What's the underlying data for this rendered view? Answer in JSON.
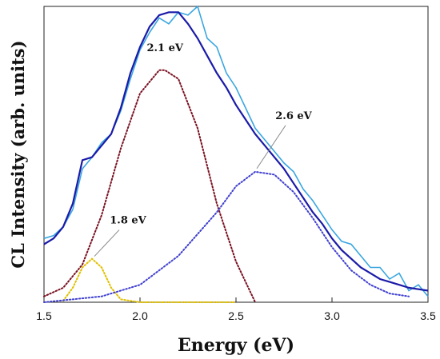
{
  "chart_data": {
    "type": "line",
    "xlabel": "Energy (eV)",
    "ylabel": "CL Intensity (arb. units)",
    "xlim": [
      1.5,
      3.5
    ],
    "ylim": [
      0,
      1.02
    ],
    "x_ticks": [
      "1.5",
      "2.0",
      "2.5",
      "3.0",
      "3.5"
    ],
    "grid": false,
    "y_tick_labels": false,
    "series": [
      {
        "role": "measured",
        "color": "#3aa6e0",
        "style": "solid-noisy",
        "x": [
          1.5,
          1.55,
          1.6,
          1.65,
          1.7,
          1.75,
          1.8,
          1.85,
          1.9,
          1.95,
          2.0,
          2.05,
          2.1,
          2.15,
          2.2,
          2.25,
          2.3,
          2.35,
          2.4,
          2.45,
          2.5,
          2.55,
          2.6,
          2.65,
          2.7,
          2.75,
          2.8,
          2.85,
          2.9,
          2.95,
          3.0,
          3.05,
          3.1,
          3.15,
          3.2,
          3.25,
          3.3,
          3.35,
          3.4,
          3.45,
          3.5
        ],
        "y": [
          0.22,
          0.23,
          0.26,
          0.32,
          0.46,
          0.5,
          0.55,
          0.58,
          0.66,
          0.77,
          0.87,
          0.93,
          0.98,
          0.96,
          1.0,
          0.99,
          1.02,
          0.91,
          0.88,
          0.79,
          0.74,
          0.67,
          0.6,
          0.56,
          0.52,
          0.48,
          0.45,
          0.39,
          0.35,
          0.3,
          0.25,
          0.21,
          0.2,
          0.16,
          0.12,
          0.12,
          0.08,
          0.1,
          0.04,
          0.06,
          0.02
        ]
      },
      {
        "role": "fit",
        "color": "#1a1aa8",
        "style": "solid",
        "x": [
          1.5,
          1.55,
          1.6,
          1.65,
          1.7,
          1.75,
          1.8,
          1.85,
          1.9,
          1.95,
          2.0,
          2.05,
          2.1,
          2.15,
          2.2,
          2.25,
          2.3,
          2.35,
          2.4,
          2.45,
          2.5,
          2.55,
          2.6,
          2.65,
          2.7,
          2.75,
          2.8,
          2.85,
          2.9,
          2.95,
          3.0,
          3.05,
          3.1,
          3.15,
          3.2,
          3.25,
          3.3,
          3.35,
          3.4,
          3.45,
          3.5
        ],
        "y": [
          0.2,
          0.22,
          0.26,
          0.34,
          0.49,
          0.5,
          0.54,
          0.58,
          0.67,
          0.79,
          0.88,
          0.95,
          0.99,
          1.0,
          1.0,
          0.96,
          0.91,
          0.85,
          0.79,
          0.74,
          0.68,
          0.63,
          0.58,
          0.54,
          0.5,
          0.46,
          0.41,
          0.36,
          0.31,
          0.27,
          0.22,
          0.18,
          0.15,
          0.12,
          0.1,
          0.08,
          0.07,
          0.06,
          0.05,
          0.045,
          0.04
        ]
      },
      {
        "role": "component",
        "label": "1.8 eV",
        "color": "#e0c000",
        "style": "dotted",
        "x": [
          1.6,
          1.65,
          1.7,
          1.75,
          1.8,
          1.85,
          1.9,
          2.0,
          2.5
        ],
        "y": [
          0.005,
          0.05,
          0.12,
          0.15,
          0.12,
          0.05,
          0.01,
          0.0,
          0.0
        ]
      },
      {
        "role": "component",
        "label": "2.1 eV",
        "color": "#7a1020",
        "style": "dotted",
        "x": [
          1.5,
          1.6,
          1.7,
          1.8,
          1.9,
          2.0,
          2.1,
          2.13,
          2.2,
          2.3,
          2.4,
          2.5,
          2.6
        ],
        "y": [
          0.02,
          0.05,
          0.13,
          0.3,
          0.53,
          0.72,
          0.8,
          0.8,
          0.77,
          0.6,
          0.34,
          0.14,
          0.0
        ]
      },
      {
        "role": "component",
        "label": "2.6 eV",
        "color": "#4040d0",
        "style": "dotted",
        "x": [
          1.5,
          1.8,
          2.0,
          2.2,
          2.4,
          2.5,
          2.6,
          2.7,
          2.8,
          2.9,
          3.0,
          3.1,
          3.2,
          3.3,
          3.4
        ],
        "y": [
          0.0,
          0.02,
          0.06,
          0.16,
          0.31,
          0.4,
          0.45,
          0.44,
          0.38,
          0.29,
          0.19,
          0.11,
          0.06,
          0.03,
          0.02
        ]
      }
    ],
    "annotations": [
      {
        "text": "2.1 eV",
        "at_x": 2.13,
        "at_y": 0.8
      },
      {
        "text": "2.6 eV",
        "at_x": 2.6,
        "at_y": 0.45,
        "arrow": true
      },
      {
        "text": "1.8 eV",
        "at_x": 1.75,
        "at_y": 0.15,
        "arrow": true
      }
    ]
  }
}
